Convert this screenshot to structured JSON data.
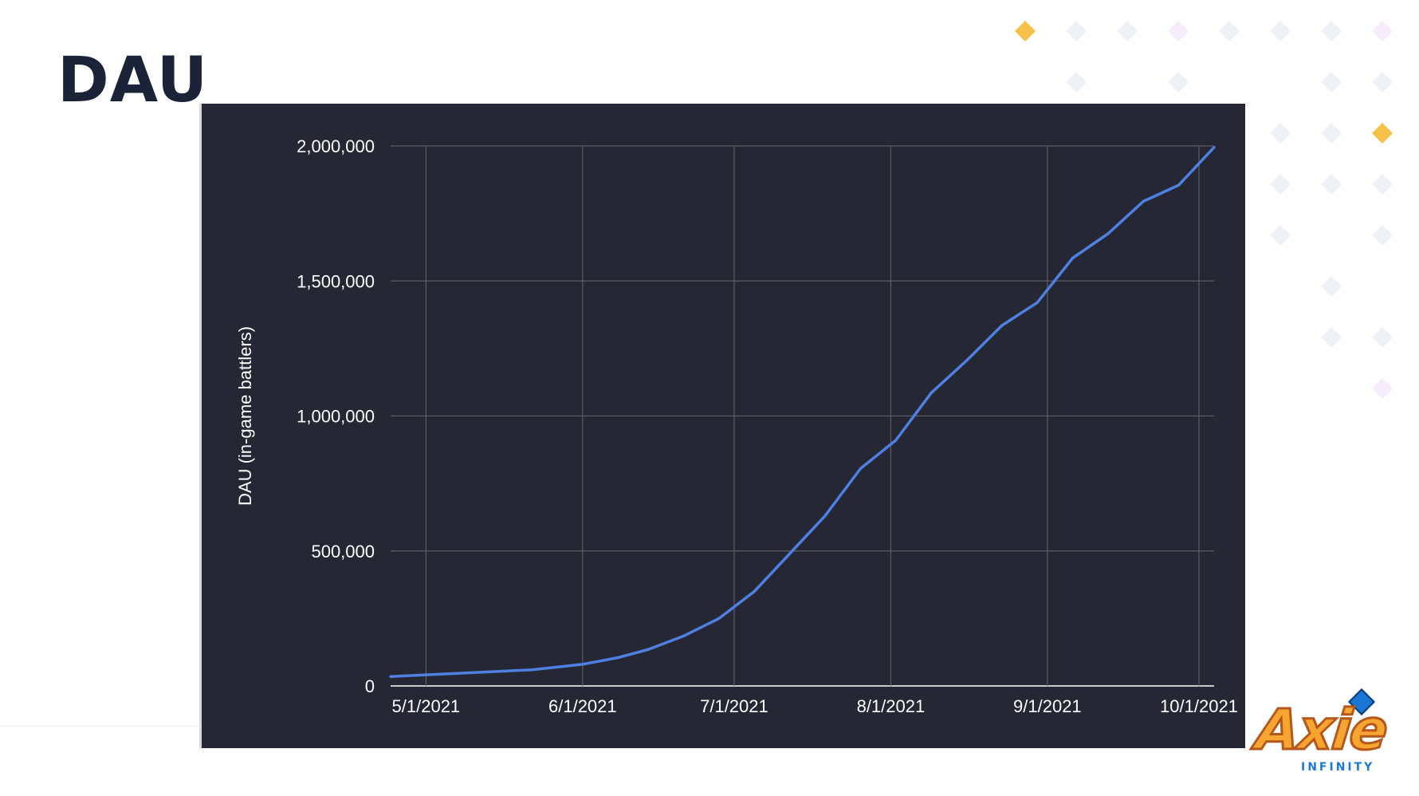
{
  "slide": {
    "title": "DAU"
  },
  "logo": {
    "word": "Axie",
    "sub": "INFINITY"
  },
  "colors": {
    "background": "#ffffff",
    "panel": "#252834",
    "line": "#4f7fe0",
    "grid": "#5a5d67",
    "text": "#ffffff",
    "title": "#1b2338",
    "dot_light": "#eef1f7",
    "dot_yellow": "#f7c04a",
    "dot_pink": "#f6ecfb"
  },
  "chart_data": {
    "type": "line",
    "title": "",
    "xlabel": "",
    "ylabel": "DAU (in-game battlers)",
    "x_ticks": [
      "5/1/2021",
      "6/1/2021",
      "7/1/2021",
      "8/1/2021",
      "9/1/2021",
      "10/1/2021"
    ],
    "y_ticks": [
      "0",
      "500,000",
      "1,000,000",
      "1,500,000",
      "2,000,000"
    ],
    "ylim": [
      0,
      2000000
    ],
    "xlim": [
      "2021-04-24",
      "2021-10-04"
    ],
    "grid": true,
    "legend": "none",
    "series": [
      {
        "points": [
          [
            "2021-04-24",
            35000
          ],
          [
            "2021-05-22",
            60000
          ],
          [
            "2021-06-01",
            80000
          ],
          [
            "2021-06-08",
            105000
          ],
          [
            "2021-06-14",
            135000
          ],
          [
            "2021-06-21",
            185000
          ],
          [
            "2021-06-28",
            250000
          ],
          [
            "2021-07-05",
            350000
          ],
          [
            "2021-07-12",
            490000
          ],
          [
            "2021-07-19",
            630000
          ],
          [
            "2021-07-26",
            805000
          ],
          [
            "2021-08-02",
            910000
          ],
          [
            "2021-08-09",
            1085000
          ],
          [
            "2021-08-16",
            1205000
          ],
          [
            "2021-08-23",
            1335000
          ],
          [
            "2021-08-30",
            1420000
          ],
          [
            "2021-09-06",
            1585000
          ],
          [
            "2021-09-13",
            1675000
          ],
          [
            "2021-09-20",
            1795000
          ],
          [
            "2021-09-27",
            1855000
          ],
          [
            "2021-10-04",
            1995000
          ]
        ]
      }
    ]
  }
}
